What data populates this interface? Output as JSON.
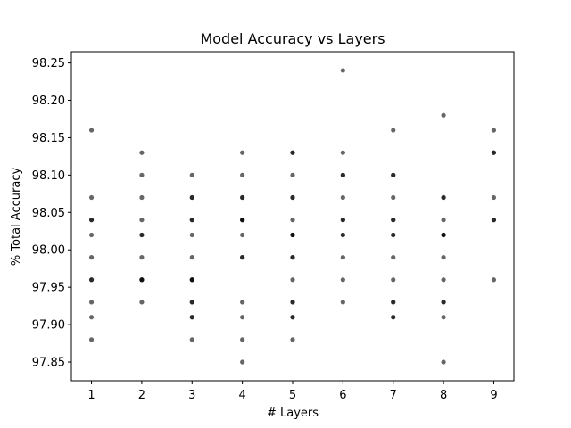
{
  "chart_data": {
    "type": "scatter",
    "title": "Model Accuracy vs Layers",
    "xlabel": "# Layers",
    "ylabel": "% Total Accuracy",
    "xlim": [
      0.6,
      9.4
    ],
    "ylim": [
      97.825,
      98.265
    ],
    "xticks": [
      1,
      2,
      3,
      4,
      5,
      6,
      7,
      8,
      9
    ],
    "yticks": [
      97.85,
      97.9,
      97.95,
      98.0,
      98.05,
      98.1,
      98.15,
      98.2,
      98.25
    ],
    "ytick_labels": [
      "97.85",
      "97.90",
      "97.95",
      "98.00",
      "98.05",
      "98.10",
      "98.15",
      "98.20",
      "98.25"
    ],
    "grid": false,
    "marker_color": "#000000",
    "marker_alpha": 0.6,
    "points": [
      {
        "x": 1,
        "y": 98.16
      },
      {
        "x": 1,
        "y": 98.07
      },
      {
        "x": 1,
        "y": 98.04
      },
      {
        "x": 1,
        "y": 98.04
      },
      {
        "x": 1,
        "y": 98.02
      },
      {
        "x": 1,
        "y": 97.99
      },
      {
        "x": 1,
        "y": 97.96
      },
      {
        "x": 1,
        "y": 97.96
      },
      {
        "x": 1,
        "y": 97.93
      },
      {
        "x": 1,
        "y": 97.91
      },
      {
        "x": 1,
        "y": 97.88
      },
      {
        "x": 2,
        "y": 98.13
      },
      {
        "x": 2,
        "y": 98.1
      },
      {
        "x": 2,
        "y": 98.07
      },
      {
        "x": 2,
        "y": 98.04
      },
      {
        "x": 2,
        "y": 98.02
      },
      {
        "x": 2,
        "y": 98.02
      },
      {
        "x": 2,
        "y": 97.99
      },
      {
        "x": 2,
        "y": 97.96
      },
      {
        "x": 2,
        "y": 97.96
      },
      {
        "x": 2,
        "y": 97.96
      },
      {
        "x": 2,
        "y": 97.93
      },
      {
        "x": 3,
        "y": 98.1
      },
      {
        "x": 3,
        "y": 98.07
      },
      {
        "x": 3,
        "y": 98.07
      },
      {
        "x": 3,
        "y": 98.04
      },
      {
        "x": 3,
        "y": 98.04
      },
      {
        "x": 3,
        "y": 98.02
      },
      {
        "x": 3,
        "y": 97.99
      },
      {
        "x": 3,
        "y": 97.96
      },
      {
        "x": 3,
        "y": 97.96
      },
      {
        "x": 3,
        "y": 97.96
      },
      {
        "x": 3,
        "y": 97.93
      },
      {
        "x": 3,
        "y": 97.93
      },
      {
        "x": 3,
        "y": 97.91
      },
      {
        "x": 3,
        "y": 97.91
      },
      {
        "x": 3,
        "y": 97.88
      },
      {
        "x": 4,
        "y": 98.13
      },
      {
        "x": 4,
        "y": 98.1
      },
      {
        "x": 4,
        "y": 98.07
      },
      {
        "x": 4,
        "y": 98.07
      },
      {
        "x": 4,
        "y": 98.04
      },
      {
        "x": 4,
        "y": 98.04
      },
      {
        "x": 4,
        "y": 98.04
      },
      {
        "x": 4,
        "y": 98.02
      },
      {
        "x": 4,
        "y": 97.99
      },
      {
        "x": 4,
        "y": 97.99
      },
      {
        "x": 4,
        "y": 97.93
      },
      {
        "x": 4,
        "y": 97.91
      },
      {
        "x": 4,
        "y": 97.88
      },
      {
        "x": 4,
        "y": 97.85
      },
      {
        "x": 5,
        "y": 98.13
      },
      {
        "x": 5,
        "y": 98.13
      },
      {
        "x": 5,
        "y": 98.1
      },
      {
        "x": 5,
        "y": 98.07
      },
      {
        "x": 5,
        "y": 98.07
      },
      {
        "x": 5,
        "y": 98.04
      },
      {
        "x": 5,
        "y": 98.02
      },
      {
        "x": 5,
        "y": 98.02
      },
      {
        "x": 5,
        "y": 98.02
      },
      {
        "x": 5,
        "y": 97.99
      },
      {
        "x": 5,
        "y": 97.99
      },
      {
        "x": 5,
        "y": 97.96
      },
      {
        "x": 5,
        "y": 97.93
      },
      {
        "x": 5,
        "y": 97.93
      },
      {
        "x": 5,
        "y": 97.91
      },
      {
        "x": 5,
        "y": 97.91
      },
      {
        "x": 5,
        "y": 97.88
      },
      {
        "x": 6,
        "y": 98.24
      },
      {
        "x": 6,
        "y": 98.13
      },
      {
        "x": 6,
        "y": 98.1
      },
      {
        "x": 6,
        "y": 98.1
      },
      {
        "x": 6,
        "y": 98.07
      },
      {
        "x": 6,
        "y": 98.04
      },
      {
        "x": 6,
        "y": 98.04
      },
      {
        "x": 6,
        "y": 98.02
      },
      {
        "x": 6,
        "y": 98.02
      },
      {
        "x": 6,
        "y": 97.99
      },
      {
        "x": 6,
        "y": 97.96
      },
      {
        "x": 6,
        "y": 97.93
      },
      {
        "x": 7,
        "y": 98.16
      },
      {
        "x": 7,
        "y": 98.1
      },
      {
        "x": 7,
        "y": 98.1
      },
      {
        "x": 7,
        "y": 98.07
      },
      {
        "x": 7,
        "y": 98.04
      },
      {
        "x": 7,
        "y": 98.04
      },
      {
        "x": 7,
        "y": 98.02
      },
      {
        "x": 7,
        "y": 98.02
      },
      {
        "x": 7,
        "y": 97.99
      },
      {
        "x": 7,
        "y": 97.96
      },
      {
        "x": 7,
        "y": 97.93
      },
      {
        "x": 7,
        "y": 97.93
      },
      {
        "x": 7,
        "y": 97.91
      },
      {
        "x": 7,
        "y": 97.91
      },
      {
        "x": 8,
        "y": 98.18
      },
      {
        "x": 8,
        "y": 98.07
      },
      {
        "x": 8,
        "y": 98.07
      },
      {
        "x": 8,
        "y": 98.04
      },
      {
        "x": 8,
        "y": 98.02
      },
      {
        "x": 8,
        "y": 98.02
      },
      {
        "x": 8,
        "y": 98.02
      },
      {
        "x": 8,
        "y": 97.99
      },
      {
        "x": 8,
        "y": 97.96
      },
      {
        "x": 8,
        "y": 97.93
      },
      {
        "x": 8,
        "y": 97.93
      },
      {
        "x": 8,
        "y": 97.91
      },
      {
        "x": 8,
        "y": 97.85
      },
      {
        "x": 9,
        "y": 98.16
      },
      {
        "x": 9,
        "y": 98.13
      },
      {
        "x": 9,
        "y": 98.13
      },
      {
        "x": 9,
        "y": 98.07
      },
      {
        "x": 9,
        "y": 98.04
      },
      {
        "x": 9,
        "y": 98.04
      },
      {
        "x": 9,
        "y": 97.96
      }
    ]
  }
}
